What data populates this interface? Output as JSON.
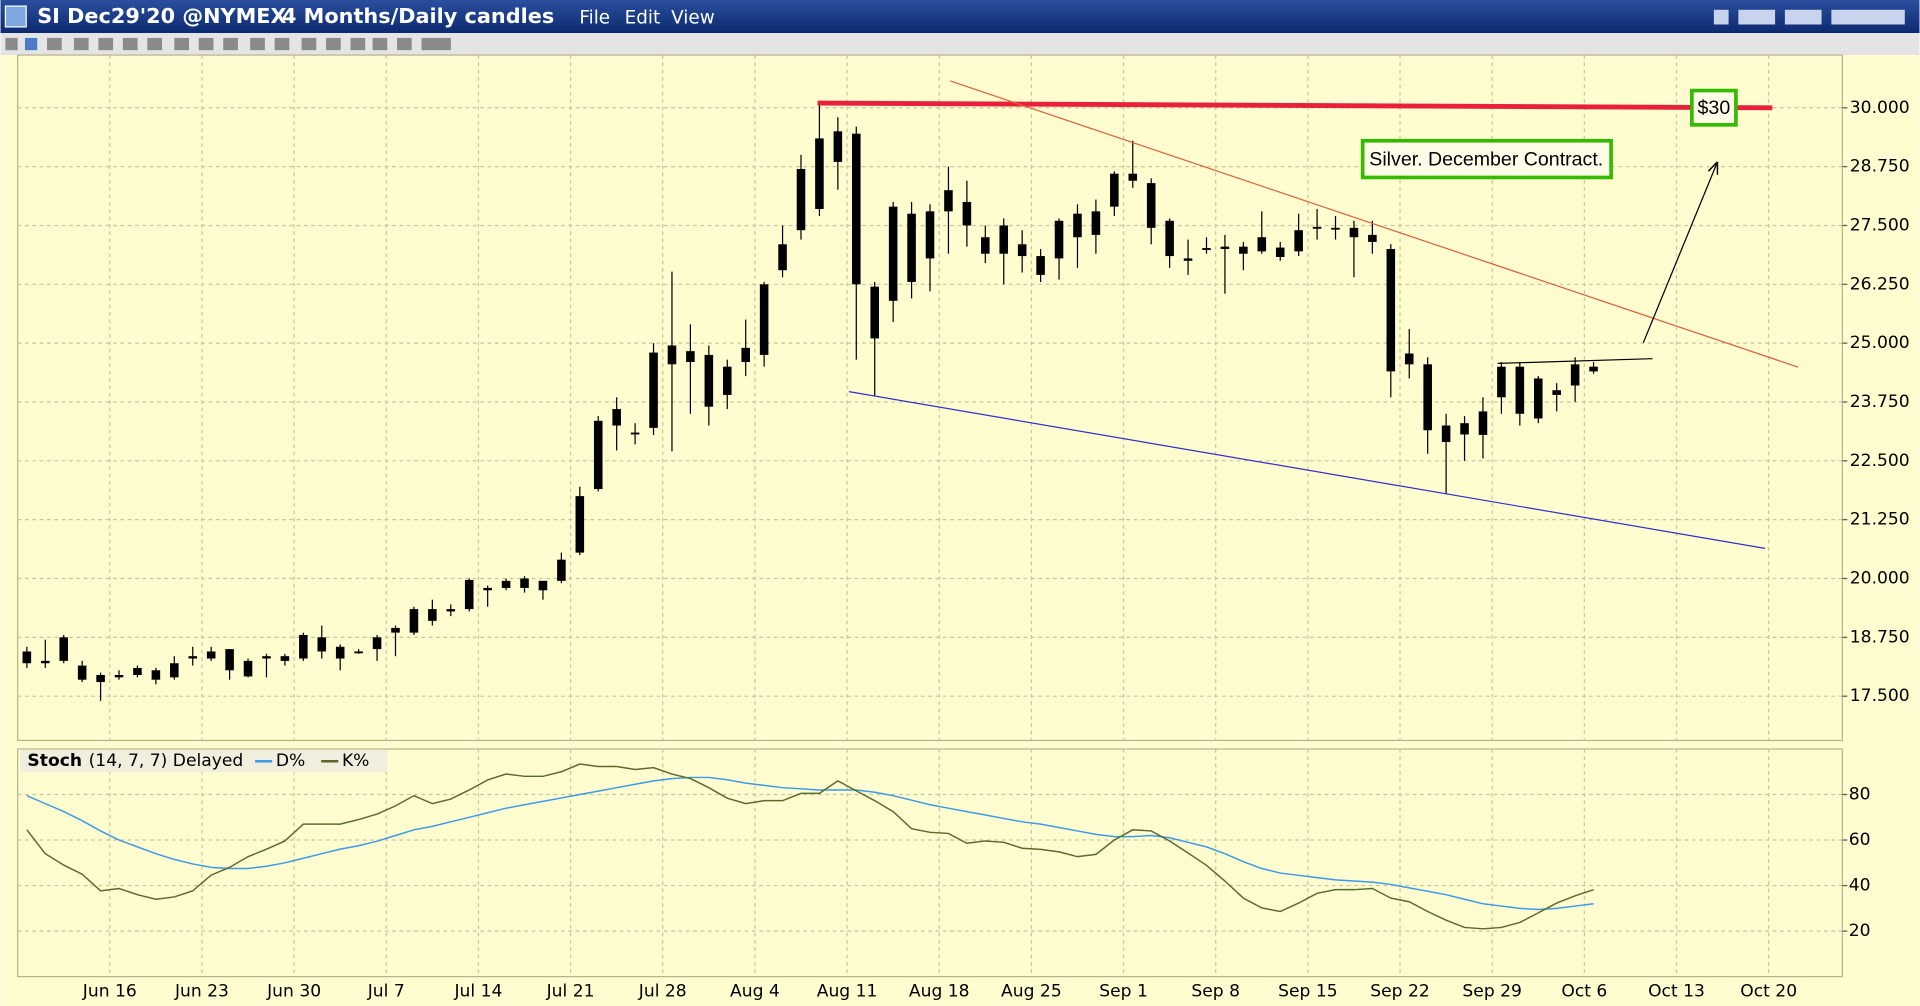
{
  "window": {
    "title": "SI Dec29'20 @NYMEX",
    "period": "4 Months/Daily candles",
    "menu": [
      "File",
      "Edit",
      "View"
    ]
  },
  "chart_data": [
    {
      "type": "candlestick",
      "candle_color": "#000000",
      "x": [
        0,
        1,
        2,
        3,
        4,
        5,
        6,
        7,
        8,
        9,
        10,
        11,
        12,
        13,
        14,
        15,
        16,
        17,
        18,
        19,
        20,
        21,
        22,
        23,
        24,
        25,
        26,
        27,
        28,
        29,
        30,
        31,
        32,
        33,
        34,
        35,
        36,
        37,
        38,
        39,
        40,
        41,
        42,
        43,
        44,
        45,
        46,
        47,
        48,
        49,
        50,
        51,
        52,
        53,
        54,
        55,
        56,
        57,
        58,
        59,
        60,
        61,
        62,
        63,
        64,
        65,
        66,
        67,
        68,
        69,
        70,
        71,
        72,
        73,
        74,
        75,
        76,
        77,
        78,
        79,
        80,
        81,
        82,
        83,
        84,
        85
      ],
      "open": [
        18.45,
        18.25,
        18.75,
        18.15,
        17.95,
        17.95,
        18.1,
        18.05,
        17.9,
        18.3,
        18.45,
        18.5,
        18.25,
        18.35,
        18.35,
        18.3,
        18.75,
        18.55,
        18.45,
        18.5,
        18.85,
        18.85,
        19.1,
        19.3,
        19.35,
        19.75,
        19.8,
        19.8,
        19.95,
        19.95,
        20.55,
        21.9,
        23.25,
        23.1,
        23.2,
        24.95,
        24.6,
        24.75,
        23.9,
        24.6,
        24.75,
        26.55,
        27.4,
        27.85,
        29.5,
        29.45,
        26.2,
        25.9,
        27.75,
        26.8,
        27.8,
        28.0,
        27.25,
        27.5,
        27.1,
        26.85,
        26.8,
        27.75,
        27.3,
        27.9,
        28.6,
        28.4,
        27.6,
        26.8,
        27.02,
        27.05,
        26.9,
        26.95,
        27.03,
        26.95,
        27.45,
        27.45,
        27.45,
        27.3,
        27.0,
        24.78,
        24.55,
        22.9,
        23.06,
        23.05,
        23.85,
        24.5,
        24.25,
        23.9,
        24.1,
        24.5
      ],
      "high": [
        18.55,
        18.7,
        18.8,
        18.25,
        18.0,
        18.05,
        18.15,
        18.1,
        18.35,
        18.55,
        18.55,
        18.5,
        18.3,
        18.4,
        18.4,
        18.85,
        19.0,
        18.6,
        18.5,
        18.8,
        19.0,
        19.4,
        19.55,
        19.45,
        20.0,
        19.85,
        20.0,
        20.05,
        19.95,
        20.55,
        21.95,
        23.45,
        23.85,
        23.3,
        25.0,
        26.52,
        25.4,
        24.95,
        24.65,
        25.5,
        26.3,
        27.5,
        29.0,
        30.1,
        29.8,
        29.6,
        26.3,
        28.0,
        28.0,
        27.95,
        28.75,
        28.45,
        27.5,
        27.65,
        27.4,
        27.0,
        27.65,
        27.95,
        28.05,
        28.65,
        29.3,
        28.5,
        27.65,
        27.2,
        27.25,
        27.3,
        27.15,
        27.8,
        27.15,
        27.75,
        27.85,
        27.7,
        27.6,
        27.6,
        27.1,
        25.3,
        24.7,
        23.5,
        23.45,
        23.85,
        24.6,
        24.6,
        24.3,
        24.15,
        24.7,
        24.6
      ],
      "low": [
        18.1,
        18.1,
        18.2,
        17.8,
        17.4,
        17.85,
        17.9,
        17.75,
        17.85,
        18.15,
        18.25,
        17.85,
        17.9,
        17.9,
        18.15,
        18.25,
        18.3,
        18.05,
        18.4,
        18.25,
        18.35,
        18.8,
        19.0,
        19.2,
        19.3,
        19.4,
        19.75,
        19.7,
        19.55,
        19.9,
        20.5,
        21.85,
        22.72,
        22.85,
        23.05,
        22.7,
        23.5,
        23.25,
        23.6,
        24.3,
        24.5,
        26.4,
        27.2,
        27.7,
        28.26,
        24.65,
        23.87,
        25.45,
        25.95,
        26.1,
        26.9,
        27.05,
        26.7,
        26.25,
        26.5,
        26.3,
        26.35,
        26.6,
        26.9,
        27.7,
        28.3,
        27.1,
        26.6,
        26.45,
        26.9,
        26.05,
        26.55,
        26.9,
        26.75,
        26.85,
        27.2,
        27.2,
        26.4,
        26.9,
        23.85,
        24.25,
        22.65,
        21.79,
        22.5,
        22.55,
        23.5,
        23.25,
        23.3,
        23.55,
        23.75,
        24.35
      ],
      "close": [
        18.2,
        18.2,
        18.25,
        17.85,
        17.8,
        17.9,
        17.95,
        17.85,
        18.2,
        18.35,
        18.3,
        18.05,
        17.92,
        18.3,
        18.25,
        18.8,
        18.45,
        18.3,
        18.42,
        18.75,
        18.95,
        19.35,
        19.35,
        19.35,
        19.97,
        19.8,
        19.95,
        20.0,
        19.75,
        20.4,
        21.75,
        23.35,
        23.6,
        23.1,
        24.8,
        24.55,
        24.83,
        23.65,
        24.5,
        24.9,
        26.25,
        27.1,
        28.7,
        29.35,
        28.85,
        26.25,
        25.1,
        27.9,
        26.3,
        27.8,
        28.25,
        27.5,
        26.9,
        26.9,
        26.85,
        26.45,
        27.6,
        27.25,
        27.8,
        28.6,
        28.45,
        27.45,
        26.85,
        26.75,
        26.98,
        27.0,
        27.05,
        27.25,
        26.83,
        27.4,
        27.47,
        27.42,
        27.25,
        27.15,
        24.4,
        24.55,
        23.15,
        23.25,
        23.3,
        23.55,
        24.5,
        23.5,
        23.4,
        24.0,
        24.55,
        24.4
      ],
      "xlim": [
        -0.5,
        98.5
      ],
      "ylim": [
        16.56,
        31.12
      ],
      "yticks": [
        {
          "value": 30,
          "label": "30.000"
        },
        {
          "value": 28.75,
          "label": "28.750"
        },
        {
          "value": 27.5,
          "label": "27.500"
        },
        {
          "value": 26.25,
          "label": "26.250"
        },
        {
          "value": 25,
          "label": "25.000"
        },
        {
          "value": 23.75,
          "label": "23.750"
        },
        {
          "value": 22.5,
          "label": "22.500"
        },
        {
          "value": 21.25,
          "label": "21.250"
        },
        {
          "value": 20,
          "label": "20.000"
        },
        {
          "value": 18.75,
          "label": "18.750"
        },
        {
          "value": 17.5,
          "label": "17.500"
        }
      ],
      "grid": true,
      "lines": [
        {
          "color": "#e8203a",
          "width": 4,
          "points": [
            [
              42.9,
              30.1
            ],
            [
              94.7,
              30.0
            ]
          ]
        },
        {
          "color": "#d9603a",
          "width": 1,
          "points": [
            [
              50.1,
              30.57
            ],
            [
              96.1,
              24.49
            ]
          ]
        },
        {
          "color": "#3030c8",
          "width": 1,
          "points": [
            [
              44.6,
              23.97
            ],
            [
              94.3,
              20.64
            ]
          ]
        },
        {
          "color": "#000000",
          "width": 1,
          "points": [
            [
              79.8,
              24.57
            ],
            [
              88.2,
              24.67
            ]
          ]
        },
        {
          "color": "#000000",
          "width": 1,
          "arrow": true,
          "points": [
            [
              87.7,
              25.01
            ],
            [
              91.7,
              28.83
            ]
          ]
        }
      ],
      "annotations": [
        {
          "text": "Silver. December Contract."
        },
        {
          "text": "$30"
        }
      ]
    },
    {
      "type": "line",
      "title": "Stoch",
      "subtitle": "(14, 7, 7) Delayed",
      "x": [
        0,
        1,
        2,
        3,
        4,
        5,
        6,
        7,
        8,
        9,
        10,
        11,
        12,
        13,
        14,
        15,
        16,
        17,
        18,
        19,
        20,
        21,
        22,
        23,
        24,
        25,
        26,
        27,
        28,
        29,
        30,
        31,
        32,
        33,
        34,
        35,
        36,
        37,
        38,
        39,
        40,
        41,
        42,
        43,
        44,
        45,
        46,
        47,
        48,
        49,
        50,
        51,
        52,
        53,
        54,
        55,
        56,
        57,
        58,
        59,
        60,
        61,
        62,
        63,
        64,
        65,
        66,
        67,
        68,
        69,
        70,
        71,
        72,
        73,
        74,
        75,
        76,
        77,
        78,
        79,
        80,
        81,
        82,
        83,
        84,
        85
      ],
      "series": [
        {
          "name": "D%",
          "color": "#3a9ae8",
          "values": [
            79.5,
            76,
            72.5,
            68.5,
            64,
            60,
            57,
            54,
            51.5,
            49.5,
            48,
            47.5,
            47.5,
            48.5,
            50,
            52,
            54,
            56,
            57.5,
            59.5,
            62,
            64.5,
            66,
            68,
            70,
            72,
            74,
            75.5,
            77,
            78.5,
            80,
            81.5,
            83,
            84.5,
            86,
            87,
            87.5,
            87.5,
            86.5,
            85,
            84,
            83,
            82.5,
            82,
            82,
            82,
            81,
            79.5,
            77.5,
            75.5,
            74,
            72.5,
            71,
            69.5,
            68,
            67,
            65.5,
            64,
            62.5,
            61.5,
            61.5,
            62,
            61,
            59,
            57,
            54,
            50.5,
            47.5,
            45.5,
            44.5,
            43.5,
            42.5,
            42,
            41.5,
            40.5,
            39,
            37.5,
            36,
            34,
            32,
            31,
            30,
            29.5,
            30,
            31,
            32
          ]
        },
        {
          "name": "K%",
          "color": "#5a6a2a",
          "values": [
            64.5,
            54,
            49,
            45,
            37.7,
            38.7,
            36,
            34,
            35,
            37.7,
            44.6,
            48,
            52.7,
            56,
            59.6,
            67,
            67,
            67,
            69,
            71.4,
            75,
            79.5,
            76,
            78,
            82,
            86.4,
            89,
            88,
            88,
            90,
            93.4,
            92.3,
            92.3,
            91,
            91.8,
            89,
            87,
            83,
            78.4,
            76,
            77.3,
            77.3,
            80.5,
            80.5,
            86,
            81.6,
            77.3,
            72.5,
            65,
            63.4,
            62.9,
            58.6,
            59.6,
            59,
            56.4,
            55.9,
            54.8,
            52.7,
            53.7,
            60,
            64.5,
            64,
            59.6,
            54.3,
            48.9,
            42,
            34.5,
            30.2,
            28.6,
            32.3,
            36.6,
            38.2,
            38.2,
            38.7,
            34.5,
            32.9,
            28.6,
            24.8,
            21.6,
            21,
            21.6,
            23.8,
            28,
            32.3,
            35.5,
            38.2
          ]
        }
      ],
      "xlim": [
        -0.5,
        98.5
      ],
      "ylim": [
        0,
        100
      ],
      "yticks": [
        20,
        40,
        60,
        80
      ],
      "grid": true,
      "xticks": [
        {
          "value": 4.5,
          "label": "Jun 16"
        },
        {
          "value": 9.5,
          "label": "Jun 23"
        },
        {
          "value": 14.5,
          "label": "Jun 30"
        },
        {
          "value": 19.5,
          "label": "Jul 7"
        },
        {
          "value": 24.5,
          "label": "Jul 14"
        },
        {
          "value": 29.5,
          "label": "Jul 21"
        },
        {
          "value": 34.5,
          "label": "Jul 28"
        },
        {
          "value": 39.5,
          "label": "Aug 4"
        },
        {
          "value": 44.5,
          "label": "Aug 11"
        },
        {
          "value": 49.5,
          "label": "Aug 18"
        },
        {
          "value": 54.5,
          "label": "Aug 25"
        },
        {
          "value": 59.5,
          "label": "Sep 1"
        },
        {
          "value": 64.5,
          "label": "Sep 8"
        },
        {
          "value": 69.5,
          "label": "Sep 15"
        },
        {
          "value": 74.5,
          "label": "Sep 22"
        },
        {
          "value": 79.5,
          "label": "Sep 29"
        },
        {
          "value": 84.5,
          "label": "Oct 6"
        },
        {
          "value": 89.5,
          "label": "Oct 13"
        },
        {
          "value": 94.5,
          "label": "Oct 20"
        }
      ]
    }
  ]
}
